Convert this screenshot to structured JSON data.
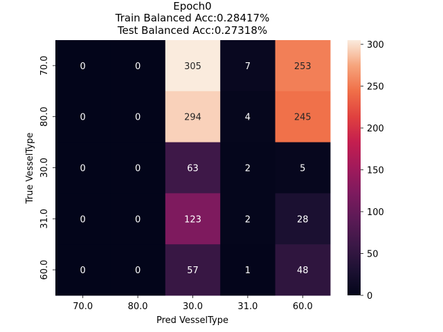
{
  "chart_data": {
    "type": "heatmap",
    "title_lines": [
      "Epoch0",
      "Train Balanced Acc:0.28417%",
      "Test Balanced Acc:0.27318%"
    ],
    "xlabel": "Pred VesselType",
    "ylabel": "True VesselType",
    "x_categories": [
      "70.0",
      "80.0",
      "30.0",
      "31.0",
      "60.0"
    ],
    "y_categories": [
      "70.0",
      "80.0",
      "30.0",
      "31.0",
      "60.0"
    ],
    "values": [
      [
        0,
        0,
        305,
        7,
        253
      ],
      [
        0,
        0,
        294,
        4,
        245
      ],
      [
        0,
        0,
        63,
        2,
        5
      ],
      [
        0,
        0,
        123,
        2,
        28
      ],
      [
        0,
        0,
        57,
        1,
        48
      ]
    ],
    "colorbar": {
      "colormap": "rocket",
      "range": [
        0,
        305
      ],
      "ticks": [
        0,
        50,
        100,
        150,
        200,
        250,
        300
      ]
    }
  }
}
